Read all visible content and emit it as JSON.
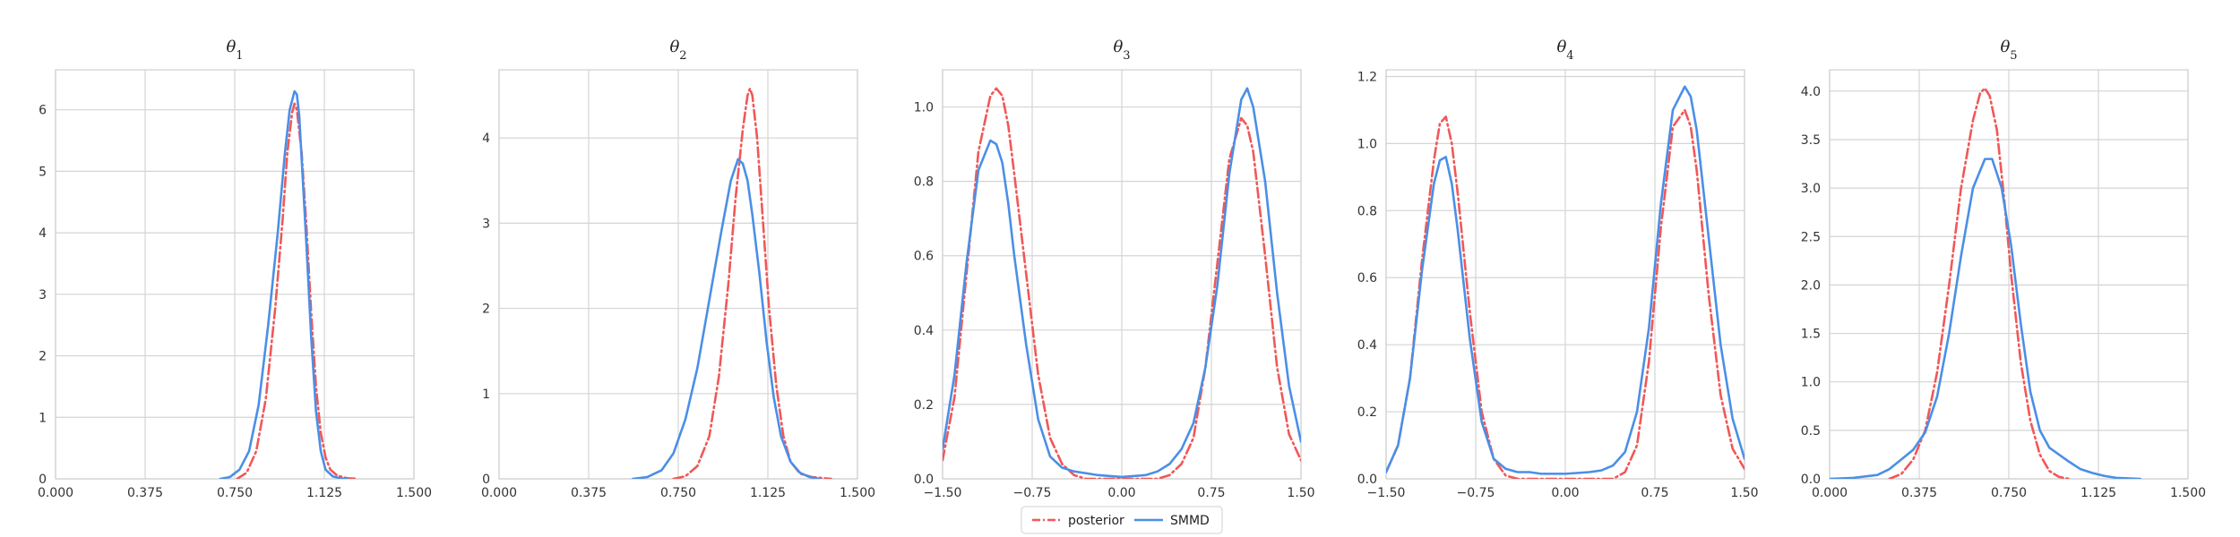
{
  "chart_data": {
    "type": "line",
    "legend": {
      "placement": "bottom-center",
      "entries": [
        {
          "name": "posterior",
          "color": "#f25757",
          "style": "dash-dot"
        },
        {
          "name": "SMMD",
          "color": "#4a8fe7",
          "style": "solid"
        }
      ]
    },
    "panels": [
      {
        "title": "θ1",
        "xlim": [
          0,
          1.5
        ],
        "ylim": [
          0,
          6.65
        ],
        "xticks": [
          "0.000",
          "0.375",
          "0.750",
          "1.125",
          "1.500"
        ],
        "yticks": [
          0,
          1,
          2,
          3,
          4,
          5,
          6
        ],
        "ytick_labels": [
          "0",
          "1",
          "2",
          "3",
          "4",
          "5",
          "6"
        ],
        "series": [
          {
            "name": "posterior",
            "color": "#f25757",
            "style": "dash-dot",
            "x": [
              0.76,
              0.8,
              0.84,
              0.88,
              0.92,
              0.95,
              0.97,
              0.99,
              1.0,
              1.01,
              1.03,
              1.05,
              1.07,
              1.09,
              1.11,
              1.13,
              1.15,
              1.18,
              1.22,
              1.26
            ],
            "y": [
              0.0,
              0.1,
              0.45,
              1.3,
              2.8,
              4.2,
              5.3,
              5.95,
              6.1,
              6.0,
              5.3,
              4.1,
              2.7,
              1.5,
              0.75,
              0.35,
              0.15,
              0.05,
              0.01,
              0.0
            ]
          },
          {
            "name": "SMMD",
            "color": "#4a8fe7",
            "style": "solid",
            "x": [
              0.69,
              0.73,
              0.77,
              0.81,
              0.85,
              0.89,
              0.93,
              0.96,
              0.98,
              1.0,
              1.01,
              1.02,
              1.03,
              1.05,
              1.07,
              1.09,
              1.11,
              1.13,
              1.16,
              1.19,
              1.22
            ],
            "y": [
              0.0,
              0.03,
              0.15,
              0.45,
              1.2,
              2.5,
              4.0,
              5.3,
              6.0,
              6.3,
              6.25,
              5.9,
              5.2,
              3.8,
              2.3,
              1.1,
              0.45,
              0.15,
              0.04,
              0.01,
              0.0
            ]
          }
        ]
      },
      {
        "title": "θ2",
        "xlim": [
          0,
          1.5
        ],
        "ylim": [
          0,
          4.8
        ],
        "xticks": [
          "0.000",
          "0.375",
          "0.750",
          "1.125",
          "1.500"
        ],
        "yticks": [
          0,
          1,
          2,
          3,
          4
        ],
        "ytick_labels": [
          "0",
          "1",
          "2",
          "3",
          "4"
        ],
        "series": [
          {
            "name": "posterior",
            "color": "#f25757",
            "style": "dash-dot",
            "x": [
              0.73,
              0.78,
              0.83,
              0.88,
              0.92,
              0.96,
              0.99,
              1.02,
              1.04,
              1.05,
              1.06,
              1.08,
              1.1,
              1.13,
              1.16,
              1.19,
              1.22,
              1.26,
              1.31,
              1.35,
              1.39
            ],
            "y": [
              0.0,
              0.03,
              0.15,
              0.5,
              1.2,
              2.3,
              3.3,
              4.1,
              4.5,
              4.58,
              4.5,
              4.0,
              3.2,
              2.0,
              1.1,
              0.5,
              0.2,
              0.06,
              0.02,
              0.01,
              0.0
            ]
          },
          {
            "name": "SMMD",
            "color": "#4a8fe7",
            "style": "solid",
            "x": [
              0.56,
              0.62,
              0.68,
              0.73,
              0.78,
              0.83,
              0.88,
              0.93,
              0.97,
              1.0,
              1.02,
              1.04,
              1.06,
              1.09,
              1.12,
              1.15,
              1.18,
              1.22,
              1.26,
              1.3,
              1.34
            ],
            "y": [
              0.0,
              0.02,
              0.1,
              0.3,
              0.7,
              1.3,
              2.1,
              2.9,
              3.5,
              3.75,
              3.7,
              3.5,
              3.1,
              2.4,
              1.6,
              0.95,
              0.5,
              0.2,
              0.07,
              0.02,
              0.0
            ]
          }
        ]
      },
      {
        "title": "θ3",
        "xlim": [
          -1.5,
          1.5
        ],
        "ylim": [
          0,
          1.1
        ],
        "xticks": [
          "−1.50",
          "−0.75",
          "0.00",
          "0.75",
          "1.50"
        ],
        "yticks": [
          0,
          0.2,
          0.4,
          0.6,
          0.8,
          1.0
        ],
        "ytick_labels": [
          "0.0",
          "0.2",
          "0.4",
          "0.6",
          "0.8",
          "1.0"
        ],
        "series": [
          {
            "name": "posterior",
            "color": "#f25757",
            "style": "dash-dot",
            "x": [
              -1.5,
              -1.4,
              -1.3,
              -1.2,
              -1.1,
              -1.05,
              -1.0,
              -0.95,
              -0.9,
              -0.8,
              -0.7,
              -0.6,
              -0.5,
              -0.4,
              -0.3,
              -0.2,
              0.0,
              0.2,
              0.3,
              0.4,
              0.5,
              0.6,
              0.7,
              0.8,
              0.9,
              1.0,
              1.05,
              1.1,
              1.2,
              1.3,
              1.4,
              1.5
            ],
            "y": [
              0.05,
              0.22,
              0.55,
              0.88,
              1.03,
              1.05,
              1.03,
              0.95,
              0.82,
              0.55,
              0.28,
              0.11,
              0.04,
              0.01,
              0.0,
              0.0,
              0.0,
              0.0,
              0.0,
              0.01,
              0.04,
              0.11,
              0.3,
              0.58,
              0.86,
              0.97,
              0.95,
              0.88,
              0.6,
              0.3,
              0.12,
              0.05
            ]
          },
          {
            "name": "SMMD",
            "color": "#4a8fe7",
            "style": "solid",
            "x": [
              -1.5,
              -1.4,
              -1.3,
              -1.2,
              -1.1,
              -1.05,
              -1.0,
              -0.95,
              -0.9,
              -0.8,
              -0.7,
              -0.6,
              -0.5,
              -0.4,
              -0.3,
              -0.2,
              0.0,
              0.2,
              0.3,
              0.4,
              0.5,
              0.6,
              0.7,
              0.8,
              0.9,
              1.0,
              1.05,
              1.1,
              1.2,
              1.3,
              1.4,
              1.5
            ],
            "y": [
              0.08,
              0.28,
              0.58,
              0.83,
              0.91,
              0.9,
              0.85,
              0.74,
              0.6,
              0.36,
              0.16,
              0.06,
              0.03,
              0.02,
              0.015,
              0.01,
              0.005,
              0.01,
              0.02,
              0.04,
              0.08,
              0.15,
              0.3,
              0.52,
              0.82,
              1.02,
              1.05,
              1.0,
              0.8,
              0.5,
              0.25,
              0.1
            ]
          }
        ]
      },
      {
        "title": "θ4",
        "xlim": [
          -1.5,
          1.5
        ],
        "ylim": [
          0,
          1.22
        ],
        "xticks": [
          "−1.50",
          "−0.75",
          "0.00",
          "0.75",
          "1.50"
        ],
        "yticks": [
          0,
          0.2,
          0.4,
          0.6,
          0.8,
          1.0,
          1.2
        ],
        "ytick_labels": [
          "0.0",
          "0.2",
          "0.4",
          "0.6",
          "0.8",
          "1.0",
          "1.2"
        ],
        "series": [
          {
            "name": "posterior",
            "color": "#f25757",
            "style": "dash-dot",
            "x": [
              -1.5,
              -1.4,
              -1.3,
              -1.2,
              -1.1,
              -1.05,
              -1.0,
              -0.95,
              -0.9,
              -0.8,
              -0.7,
              -0.6,
              -0.5,
              -0.4,
              -0.3,
              -0.2,
              0.0,
              0.2,
              0.3,
              0.4,
              0.5,
              0.6,
              0.7,
              0.8,
              0.9,
              1.0,
              1.05,
              1.1,
              1.2,
              1.3,
              1.4,
              1.5
            ],
            "y": [
              0.02,
              0.1,
              0.3,
              0.65,
              0.95,
              1.06,
              1.08,
              1.0,
              0.85,
              0.5,
              0.2,
              0.06,
              0.01,
              0.0,
              0.0,
              0.0,
              0.0,
              0.0,
              0.0,
              0.0,
              0.02,
              0.1,
              0.35,
              0.75,
              1.05,
              1.1,
              1.05,
              0.92,
              0.55,
              0.25,
              0.09,
              0.03
            ]
          },
          {
            "name": "SMMD",
            "color": "#4a8fe7",
            "style": "solid",
            "x": [
              -1.5,
              -1.4,
              -1.3,
              -1.2,
              -1.1,
              -1.05,
              -1.0,
              -0.95,
              -0.9,
              -0.8,
              -0.7,
              -0.6,
              -0.5,
              -0.4,
              -0.3,
              -0.2,
              0.0,
              0.2,
              0.3,
              0.4,
              0.5,
              0.6,
              0.7,
              0.8,
              0.9,
              1.0,
              1.05,
              1.1,
              1.2,
              1.3,
              1.4,
              1.5
            ],
            "y": [
              0.02,
              0.1,
              0.3,
              0.62,
              0.88,
              0.95,
              0.96,
              0.88,
              0.74,
              0.42,
              0.17,
              0.06,
              0.03,
              0.02,
              0.02,
              0.015,
              0.015,
              0.02,
              0.025,
              0.04,
              0.08,
              0.2,
              0.45,
              0.82,
              1.1,
              1.17,
              1.14,
              1.04,
              0.72,
              0.4,
              0.18,
              0.06
            ]
          }
        ]
      },
      {
        "title": "θ5",
        "xlim": [
          0,
          1.5
        ],
        "ylim": [
          0,
          4.22
        ],
        "xticks": [
          "0.000",
          "0.375",
          "0.750",
          "1.125",
          "1.500"
        ],
        "yticks": [
          0,
          0.5,
          1.0,
          1.5,
          2.0,
          2.5,
          3.0,
          3.5,
          4.0
        ],
        "ytick_labels": [
          "0.0",
          "0.5",
          "1.0",
          "1.5",
          "2.0",
          "2.5",
          "3.0",
          "3.5",
          "4.0"
        ],
        "series": [
          {
            "name": "posterior",
            "color": "#f25757",
            "style": "dash-dot",
            "x": [
              0.25,
              0.3,
              0.35,
              0.4,
              0.45,
              0.5,
              0.55,
              0.6,
              0.63,
              0.65,
              0.67,
              0.7,
              0.73,
              0.76,
              0.8,
              0.84,
              0.88,
              0.92,
              0.96,
              1.0
            ],
            "y": [
              0.0,
              0.05,
              0.2,
              0.5,
              1.1,
              2.0,
              3.0,
              3.7,
              3.98,
              4.03,
              3.95,
              3.6,
              2.9,
              2.1,
              1.2,
              0.6,
              0.25,
              0.08,
              0.02,
              0.0
            ]
          },
          {
            "name": "SMMD",
            "color": "#4a8fe7",
            "style": "solid",
            "x": [
              0.0,
              0.1,
              0.2,
              0.25,
              0.3,
              0.35,
              0.4,
              0.45,
              0.5,
              0.55,
              0.6,
              0.65,
              0.68,
              0.72,
              0.76,
              0.8,
              0.84,
              0.88,
              0.92,
              0.96,
              1.0,
              1.05,
              1.1,
              1.15,
              1.2,
              1.3
            ],
            "y": [
              0.0,
              0.01,
              0.04,
              0.1,
              0.2,
              0.3,
              0.48,
              0.85,
              1.5,
              2.3,
              3.0,
              3.3,
              3.3,
              3.0,
              2.4,
              1.6,
              0.9,
              0.5,
              0.32,
              0.25,
              0.18,
              0.1,
              0.06,
              0.03,
              0.01,
              0.0
            ]
          }
        ]
      }
    ]
  }
}
